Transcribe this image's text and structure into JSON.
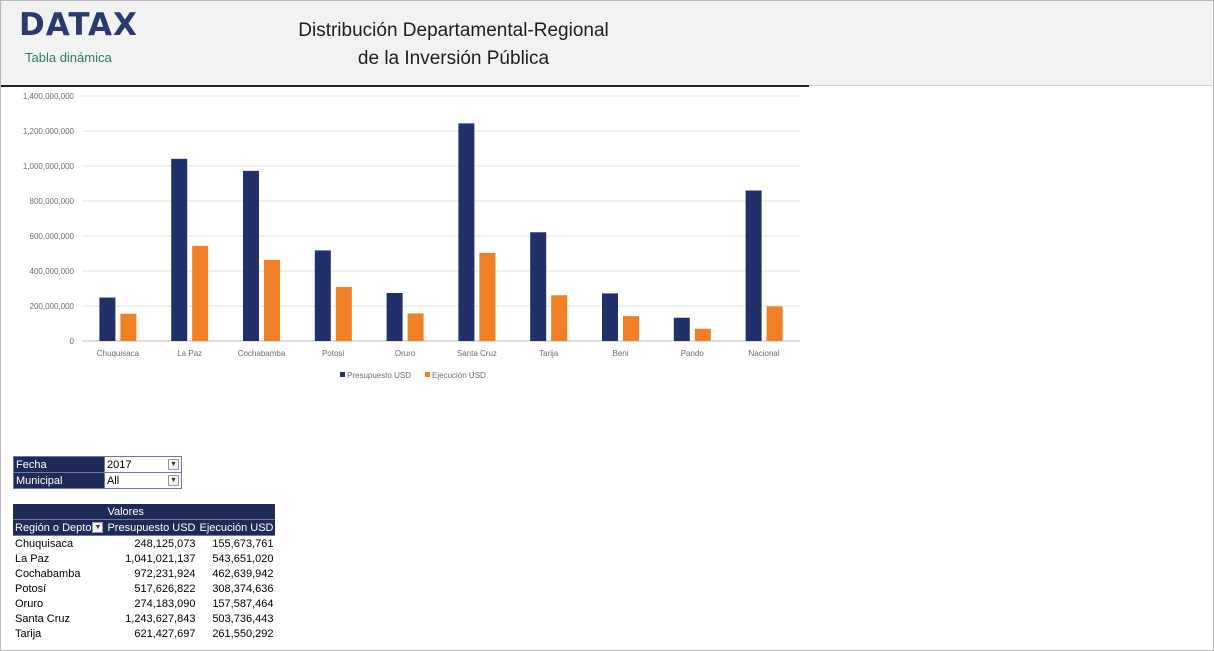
{
  "header": {
    "logo": "DATAX",
    "subtitle": "Tabla dinámica",
    "title_line1": "Distribución Departamental-Regional",
    "title_line2": "de la Inversión Pública"
  },
  "colors": {
    "presupuesto": "#22306a",
    "ejecucion": "#f07f26",
    "header_dark": "#1f2b57"
  },
  "chart_data": {
    "type": "bar",
    "categories": [
      "Chuquisaca",
      "La Paz",
      "Cochabamba",
      "Potosí",
      "Oruro",
      "Santa Cruz",
      "Tarija",
      "Beni",
      "Pando",
      "Nacional"
    ],
    "series": [
      {
        "name": "Presupuesto USD",
        "values": [
          248125073,
          1041021137,
          972231924,
          517626822,
          274183090,
          1243627843,
          621427697,
          272000000,
          133000000,
          860000000
        ]
      },
      {
        "name": "Ejecución USD",
        "values": [
          155673761,
          543651020,
          462639942,
          308374636,
          157587464,
          503736443,
          261550292,
          142000000,
          70000000,
          198000000
        ]
      }
    ],
    "yticks": [
      "0",
      "200,000,000",
      "400,000,000",
      "600,000,000",
      "800,000,000",
      "1,000,000,000",
      "1,200,000,000",
      "1,400,000,000"
    ],
    "ylim": [
      0,
      1400000000
    ],
    "grid": true,
    "legend_position": "bottom"
  },
  "filters": [
    {
      "label": "Fecha",
      "value": "2017"
    },
    {
      "label": "Municipal",
      "value": "All"
    }
  ],
  "pivot": {
    "values_header": "Valores",
    "columns": [
      "Región o Depto",
      "Presupuesto USD",
      "Ejecución USD"
    ],
    "rows": [
      [
        "Chuquisaca",
        "248,125,073",
        "155,673,761"
      ],
      [
        "La Paz",
        "1,041,021,137",
        "543,651,020"
      ],
      [
        "Cochabamba",
        "972,231,924",
        "462,639,942"
      ],
      [
        "Potosí",
        "517,626,822",
        "308,374,636"
      ],
      [
        "Oruro",
        "274,183,090",
        "157,587,464"
      ],
      [
        "Santa Cruz",
        "1,243,627,843",
        "503,736,443"
      ],
      [
        "Tarija",
        "621,427,697",
        "261,550,292"
      ]
    ]
  }
}
